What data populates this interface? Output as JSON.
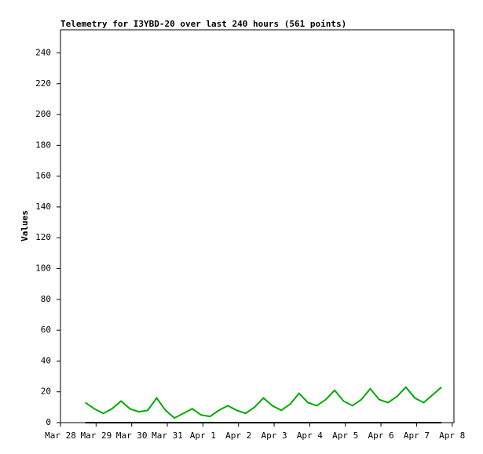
{
  "chart_data": {
    "type": "line",
    "title": "Telemetry for I3YBD-20 over last 240 hours (561 points)",
    "y_label": "Values",
    "x": [
      0.7,
      0.95,
      1.2,
      1.45,
      1.7,
      1.95,
      2.2,
      2.45,
      2.7,
      2.95,
      3.2,
      3.45,
      3.7,
      3.95,
      4.2,
      4.45,
      4.7,
      4.95,
      5.2,
      5.45,
      5.7,
      5.95,
      6.2,
      6.45,
      6.7,
      6.95,
      7.2,
      7.45,
      7.7,
      7.95,
      8.2,
      8.45,
      8.7,
      8.95,
      9.2,
      9.45,
      9.7,
      9.95,
      10.2,
      10.45,
      10.7
    ],
    "series": [
      {
        "color": "#00aa00",
        "values": [
          13,
          9,
          6,
          9,
          14,
          9,
          7,
          8,
          16,
          8,
          3,
          6,
          9,
          5,
          4,
          8,
          11,
          8,
          6,
          10,
          16,
          11,
          8,
          12,
          19,
          13,
          11,
          15,
          21,
          14,
          11,
          15,
          22,
          15,
          13,
          17,
          23,
          16,
          13,
          18,
          23
        ]
      },
      {
        "color": "#000000",
        "values": [
          0,
          0,
          0,
          0,
          0,
          0,
          0,
          0,
          0,
          0,
          0,
          0,
          0,
          0,
          0,
          0,
          0,
          0,
          0,
          0,
          0,
          0,
          0,
          0,
          0,
          0,
          0,
          0,
          0,
          0,
          0,
          0,
          0,
          0,
          0,
          0,
          0,
          0,
          0,
          0,
          0
        ]
      }
    ],
    "xlim": [
      0,
      11.05
    ],
    "xticks": [
      {
        "value": 0,
        "label": "Mar 28"
      },
      {
        "value": 1,
        "label": "Mar 29"
      },
      {
        "value": 2,
        "label": "Mar 30"
      },
      {
        "value": 3,
        "label": "Mar 31"
      },
      {
        "value": 4,
        "label": "Apr 1"
      },
      {
        "value": 5,
        "label": "Apr 2"
      },
      {
        "value": 6,
        "label": "Apr 3"
      },
      {
        "value": 7,
        "label": "Apr 4"
      },
      {
        "value": 8,
        "label": "Apr 5"
      },
      {
        "value": 9,
        "label": "Apr 6"
      },
      {
        "value": 10,
        "label": "Apr 7"
      },
      {
        "value": 11,
        "label": "Apr 8"
      }
    ],
    "ylim": [
      0,
      255
    ],
    "yticks": [
      0,
      20,
      40,
      60,
      80,
      100,
      120,
      140,
      160,
      180,
      200,
      220,
      240
    ]
  }
}
